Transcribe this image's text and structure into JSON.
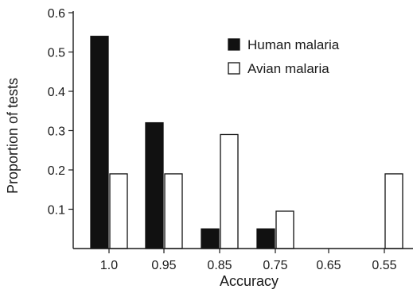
{
  "chart_data": {
    "type": "bar",
    "title": "",
    "xlabel": "Accuracy",
    "ylabel": "Proportion of tests",
    "categories": [
      "1.0",
      "0.95",
      "0.85",
      "0.75",
      "0.65",
      "0.55"
    ],
    "ylim": [
      0,
      0.6
    ],
    "yticks": [
      "0.1",
      "0.2",
      "0.3",
      "0.4",
      "0.5",
      "0.6"
    ],
    "grid": false,
    "legend_position": "top-right",
    "series": [
      {
        "name": "Human malaria",
        "values": [
          0.54,
          0.32,
          0.05,
          0.05,
          0,
          0
        ],
        "fill": "#111111",
        "stroke": "#111111"
      },
      {
        "name": "Avian malaria",
        "values": [
          0.19,
          0.19,
          0.29,
          0.095,
          0,
          0.19
        ],
        "fill": "#ffffff",
        "stroke": "#111111"
      }
    ]
  }
}
